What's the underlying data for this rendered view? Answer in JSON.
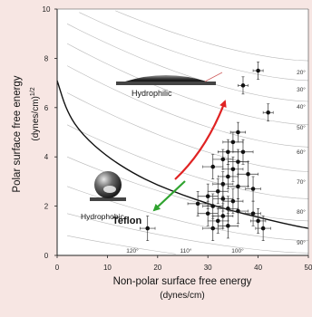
{
  "chart_data": {
    "type": "scatter",
    "xlabel_line1": "Non-polar surface free energy",
    "xlabel_line2": "(dynes/cm)",
    "ylabel_line1": "Polar surface free energy",
    "ylabel_line2": "(dynes/cm)",
    "ylabel_sup": "1/2",
    "xlim": [
      0,
      50
    ],
    "ylim": [
      0,
      10
    ],
    "x_ticks": [
      "0",
      "10",
      "20",
      "30",
      "40",
      "50"
    ],
    "y_ticks": [
      "0",
      "2",
      "4",
      "6",
      "8",
      "10"
    ],
    "contour_labels": [
      "20°",
      "30°",
      "40°",
      "50°",
      "60°",
      "70°",
      "80°",
      "90°",
      "100°",
      "110°",
      "120°"
    ],
    "annotations": {
      "hydrophilic": "Hydrophilic",
      "hydrophobic": "Hydrophobic",
      "teflon": "Teflon"
    },
    "boundary_curve": [
      [
        0,
        7.1
      ],
      [
        2,
        5.8
      ],
      [
        5,
        4.9
      ],
      [
        10,
        4.0
      ],
      [
        15,
        3.35
      ],
      [
        20,
        2.85
      ],
      [
        25,
        2.45
      ],
      [
        30,
        2.1
      ],
      [
        35,
        1.8
      ],
      [
        40,
        1.55
      ],
      [
        45,
        1.3
      ],
      [
        50,
        1.1
      ]
    ],
    "teflon_point": {
      "x": 18,
      "y": 1.1,
      "xerr": 1.5,
      "yerr": 0.5
    },
    "points": [
      {
        "x": 40,
        "y": 7.5,
        "xerr": 1,
        "yerr": 0.35
      },
      {
        "x": 37,
        "y": 6.9,
        "xerr": 1,
        "yerr": 0.35
      },
      {
        "x": 42,
        "y": 5.8,
        "xerr": 1,
        "yerr": 0.35
      },
      {
        "x": 36,
        "y": 5.0,
        "xerr": 1.5,
        "yerr": 0.4
      },
      {
        "x": 35,
        "y": 4.6,
        "xerr": 2,
        "yerr": 0.4
      },
      {
        "x": 34,
        "y": 4.2,
        "xerr": 2,
        "yerr": 0.5
      },
      {
        "x": 37,
        "y": 4.2,
        "xerr": 2,
        "yerr": 0.5
      },
      {
        "x": 33,
        "y": 3.9,
        "xerr": 2,
        "yerr": 0.4
      },
      {
        "x": 36,
        "y": 3.8,
        "xerr": 2,
        "yerr": 0.5
      },
      {
        "x": 31,
        "y": 3.6,
        "xerr": 2,
        "yerr": 0.5
      },
      {
        "x": 35,
        "y": 3.5,
        "xerr": 2,
        "yerr": 0.5
      },
      {
        "x": 34,
        "y": 3.2,
        "xerr": 2,
        "yerr": 0.5
      },
      {
        "x": 38,
        "y": 3.3,
        "xerr": 2,
        "yerr": 0.5
      },
      {
        "x": 33,
        "y": 2.9,
        "xerr": 2,
        "yerr": 0.5
      },
      {
        "x": 36,
        "y": 2.8,
        "xerr": 2,
        "yerr": 0.5
      },
      {
        "x": 32,
        "y": 2.6,
        "xerr": 2,
        "yerr": 0.5
      },
      {
        "x": 39,
        "y": 2.7,
        "xerr": 1.5,
        "yerr": 0.5
      },
      {
        "x": 30,
        "y": 2.4,
        "xerr": 2,
        "yerr": 0.5
      },
      {
        "x": 33,
        "y": 2.3,
        "xerr": 2,
        "yerr": 0.5
      },
      {
        "x": 35,
        "y": 2.2,
        "xerr": 2,
        "yerr": 0.5
      },
      {
        "x": 28,
        "y": 2.1,
        "xerr": 2,
        "yerr": 0.5
      },
      {
        "x": 31,
        "y": 2.0,
        "xerr": 2,
        "yerr": 0.5
      },
      {
        "x": 34,
        "y": 1.9,
        "xerr": 2,
        "yerr": 0.5
      },
      {
        "x": 30,
        "y": 1.7,
        "xerr": 2,
        "yerr": 0.5
      },
      {
        "x": 33,
        "y": 1.6,
        "xerr": 2,
        "yerr": 0.5
      },
      {
        "x": 36,
        "y": 1.8,
        "xerr": 2,
        "yerr": 0.5
      },
      {
        "x": 39,
        "y": 1.7,
        "xerr": 1.5,
        "yerr": 0.5
      },
      {
        "x": 32,
        "y": 1.4,
        "xerr": 2,
        "yerr": 0.5
      },
      {
        "x": 34,
        "y": 1.2,
        "xerr": 2,
        "yerr": 0.5
      },
      {
        "x": 40,
        "y": 1.4,
        "xerr": 1.5,
        "yerr": 0.5
      },
      {
        "x": 41,
        "y": 1.1,
        "xerr": 1.5,
        "yerr": 0.5
      },
      {
        "x": 31,
        "y": 1.1,
        "xerr": 2,
        "yerr": 0.5
      }
    ]
  }
}
